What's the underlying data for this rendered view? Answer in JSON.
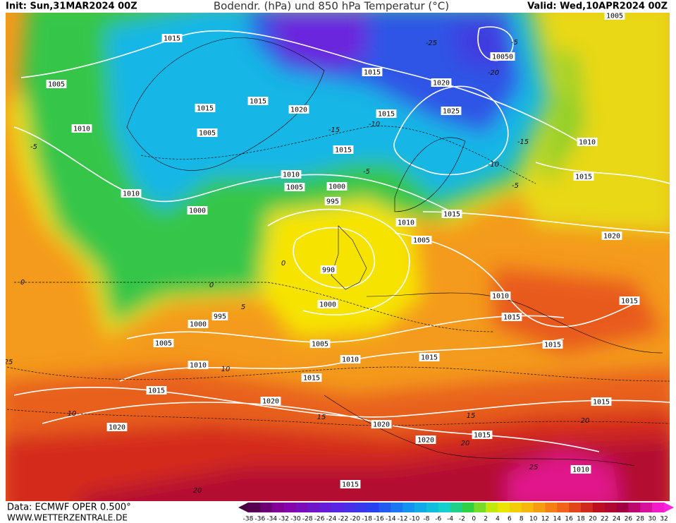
{
  "header": {
    "init": "Init: Sun,31MAR2024 00Z",
    "title": "Bodendr. (hPa) und 850 hPa Temperatur (°C)",
    "valid": "Valid: Wed,10APR2024 00Z"
  },
  "footer": {
    "source": "Data: ECMWF OPER 0.500°",
    "site": "WWW.WETTERZENTRALE.DE"
  },
  "colorbar": {
    "labels": [
      -38,
      -36,
      -34,
      -32,
      -30,
      -28,
      -26,
      -24,
      -22,
      -20,
      -18,
      -16,
      -14,
      -12,
      -10,
      -8,
      -6,
      -4,
      -2,
      0,
      2,
      4,
      6,
      8,
      10,
      12,
      14,
      16,
      18,
      20,
      22,
      24,
      26,
      28,
      30,
      32
    ]
  },
  "isobar_labels": [
    "1015",
    "1005",
    "1015",
    "1015",
    "1020",
    "1005",
    "1010",
    "1010",
    "1015",
    "1020",
    "1025",
    "1015",
    "1015",
    "1010",
    "1005",
    "1000",
    "995",
    "1010",
    "1015",
    "1000",
    "1015",
    "1010",
    "1005",
    "1020",
    "990",
    "1000",
    "995",
    "1010",
    "1015",
    "1015",
    "1000",
    "1005",
    "1005",
    "1015",
    "1010",
    "1015",
    "1010",
    "1015",
    "1015",
    "1020",
    "1015",
    "1020",
    "1020",
    "1020",
    "1015",
    "1010",
    "1015",
    "1005",
    "10050"
  ],
  "temperature_labels": [
    "-5",
    "0",
    "-10",
    "-15",
    "-5",
    "-10",
    "-15",
    "-5",
    "0",
    "0",
    "5",
    "10",
    "10",
    "15",
    "15",
    "20",
    "20",
    "25",
    "20",
    "25",
    "-25",
    "-20",
    "-5"
  ]
}
